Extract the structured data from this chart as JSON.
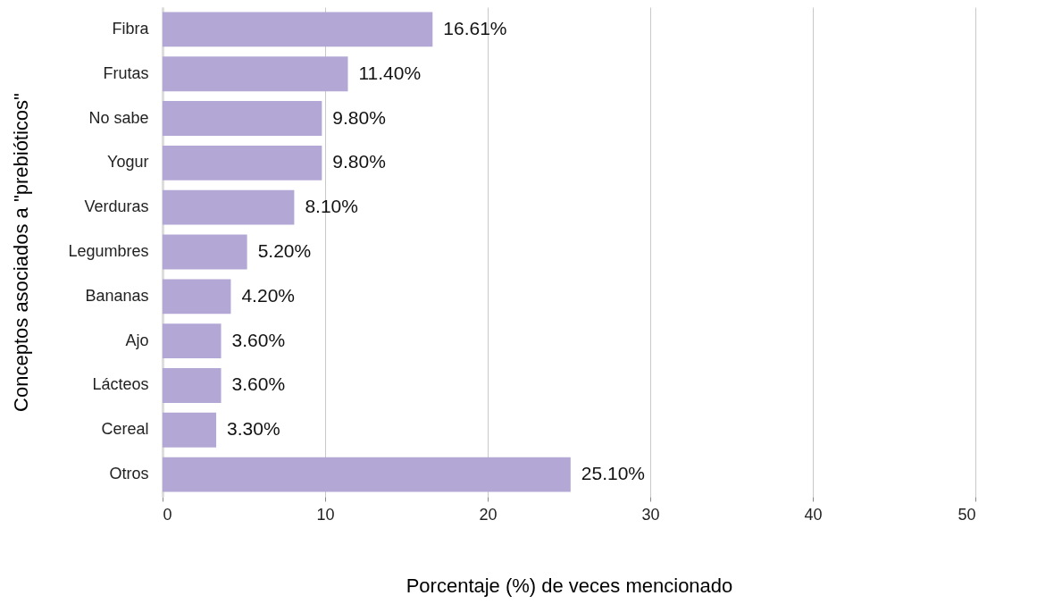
{
  "chart_data": {
    "type": "bar",
    "orientation": "horizontal",
    "xlabel": "Porcentaje (%) de veces mencionado",
    "ylabel": "Conceptos asociados a \"prebióticos\"",
    "categories": [
      "Fibra",
      "Frutas",
      "No sabe",
      "Yogur",
      "Verduras",
      "Legumbres",
      "Bananas",
      "Ajo",
      "Lácteos",
      "Cereal",
      "Otros"
    ],
    "values": [
      16.61,
      11.4,
      9.8,
      9.8,
      8.1,
      5.2,
      4.2,
      3.6,
      3.6,
      3.3,
      25.1
    ],
    "value_labels": [
      "16.61%",
      "11.40%",
      "9.80%",
      "9.80%",
      "8.10%",
      "5.20%",
      "4.20%",
      "3.60%",
      "3.60%",
      "3.30%",
      "25.10%"
    ],
    "color": "#b3a7d6",
    "xlim": [
      0,
      50
    ],
    "xticks": [
      0,
      10,
      20,
      30,
      40,
      50
    ],
    "grid": "x"
  }
}
